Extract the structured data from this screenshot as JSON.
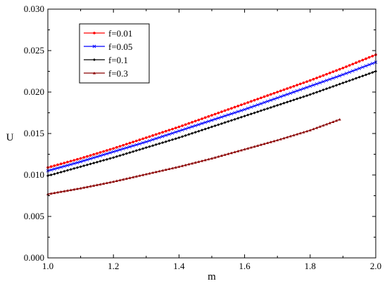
{
  "chart_data": {
    "type": "line",
    "xlabel": "m",
    "ylabel": "U",
    "xlim": [
      1.0,
      2.0
    ],
    "ylim": [
      0.0,
      0.03
    ],
    "xticks": [
      1.0,
      1.2,
      1.4,
      1.6,
      1.8,
      2.0
    ],
    "xtick_labels": [
      "1.0",
      "1.2",
      "1.4",
      "1.6",
      "1.8",
      "2.0"
    ],
    "yticks": [
      0.0,
      0.005,
      0.01,
      0.015,
      0.02,
      0.025,
      0.03
    ],
    "ytick_labels": [
      "0.000",
      "0.005",
      "0.010",
      "0.015",
      "0.020",
      "0.025",
      "0.030"
    ],
    "grid": false,
    "legend_position": "top-left",
    "series": [
      {
        "name": "f=0.01",
        "color": "#ff0000",
        "marker": "circle",
        "x": [
          1.0,
          1.1,
          1.2,
          1.3,
          1.4,
          1.5,
          1.6,
          1.7,
          1.8,
          1.9,
          2.0
        ],
        "values": [
          0.0109,
          0.012,
          0.0132,
          0.0145,
          0.0158,
          0.0172,
          0.0186,
          0.02,
          0.0214,
          0.0229,
          0.0245
        ]
      },
      {
        "name": "f=0.05",
        "color": "#0000ff",
        "marker": "x",
        "x": [
          1.0,
          1.1,
          1.2,
          1.3,
          1.4,
          1.5,
          1.6,
          1.7,
          1.8,
          1.9,
          2.0
        ],
        "values": [
          0.0105,
          0.0116,
          0.0128,
          0.014,
          0.0153,
          0.0166,
          0.0179,
          0.0193,
          0.0207,
          0.0221,
          0.0236
        ]
      },
      {
        "name": "f=0.1",
        "color": "#000000",
        "marker": "diamond",
        "x": [
          1.0,
          1.1,
          1.2,
          1.3,
          1.4,
          1.5,
          1.6,
          1.7,
          1.8,
          1.9,
          2.0
        ],
        "values": [
          0.0099,
          0.011,
          0.0121,
          0.0133,
          0.0145,
          0.0158,
          0.0171,
          0.0184,
          0.0197,
          0.0211,
          0.0225
        ]
      },
      {
        "name": "f=0.3",
        "color": "#8b0000",
        "marker": "triangle",
        "x": [
          1.0,
          1.1,
          1.2,
          1.3,
          1.4,
          1.5,
          1.6,
          1.7,
          1.8,
          1.89
        ],
        "values": [
          0.0077,
          0.0084,
          0.0092,
          0.0101,
          0.011,
          0.012,
          0.0131,
          0.0142,
          0.0154,
          0.0167
        ]
      }
    ]
  }
}
